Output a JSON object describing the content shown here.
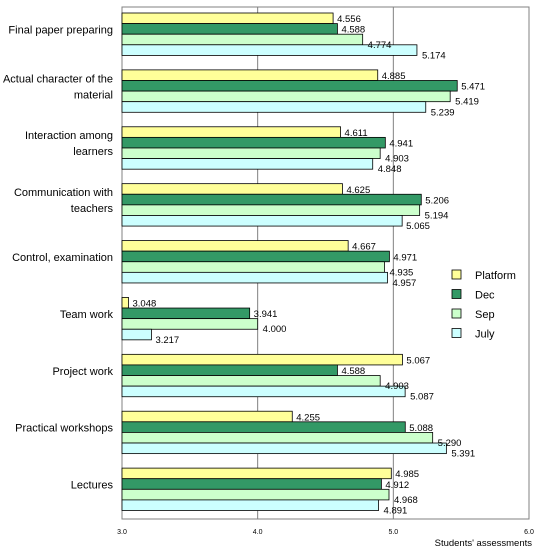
{
  "chart_data": {
    "type": "bar",
    "orientation": "horizontal",
    "xlabel": "Students' assessments",
    "xlim": [
      3.0,
      6.0
    ],
    "xticks": [
      "3.0",
      "4.0",
      "5.0",
      "6.0"
    ],
    "grid": true,
    "legend_position": "right",
    "categories": [
      [
        "Final paper preparing"
      ],
      [
        "Actual character of the",
        "material"
      ],
      [
        "Interaction among",
        "learners"
      ],
      [
        "Communication with",
        "teachers"
      ],
      [
        "Control, examination"
      ],
      [
        "Team work"
      ],
      [
        "Project work"
      ],
      [
        "Practical workshops"
      ],
      [
        "Lectures"
      ]
    ],
    "series": [
      {
        "name": "Platform",
        "color": "#ffff99",
        "values": [
          4.556,
          4.885,
          4.611,
          4.625,
          4.667,
          3.048,
          5.067,
          4.255,
          4.985
        ],
        "labels": [
          "4.556",
          "4.885",
          "4.611",
          "4.625",
          "4.667",
          "3.048",
          "5.067",
          "4.255",
          "4.985"
        ]
      },
      {
        "name": "Dec",
        "color": "#339966",
        "values": [
          4.588,
          5.471,
          4.941,
          5.206,
          4.971,
          3.941,
          4.588,
          5.088,
          4.912
        ],
        "labels": [
          "4.588",
          "5.471",
          "4.941",
          "5.206",
          "4.971",
          "3.941",
          "4.588",
          "5.088",
          "4.912"
        ]
      },
      {
        "name": "Sep",
        "color": "#ccffcc",
        "values": [
          4.774,
          5.419,
          4.903,
          5.194,
          4.935,
          4.0,
          4.903,
          5.29,
          4.968
        ],
        "labels": [
          "4.774",
          "5.419",
          "4.903",
          "5.194",
          "4.935",
          "4.000",
          "4.903",
          "5.290",
          "4.968"
        ]
      },
      {
        "name": "July",
        "color": "#ccffff",
        "values": [
          5.174,
          5.239,
          4.848,
          5.065,
          4.957,
          3.217,
          5.087,
          5.391,
          4.891
        ],
        "labels": [
          "5.174",
          "5.239",
          "4.848",
          "5.065",
          "4.957",
          "3.217",
          "5.087",
          "5.391",
          "4.891"
        ]
      }
    ]
  }
}
